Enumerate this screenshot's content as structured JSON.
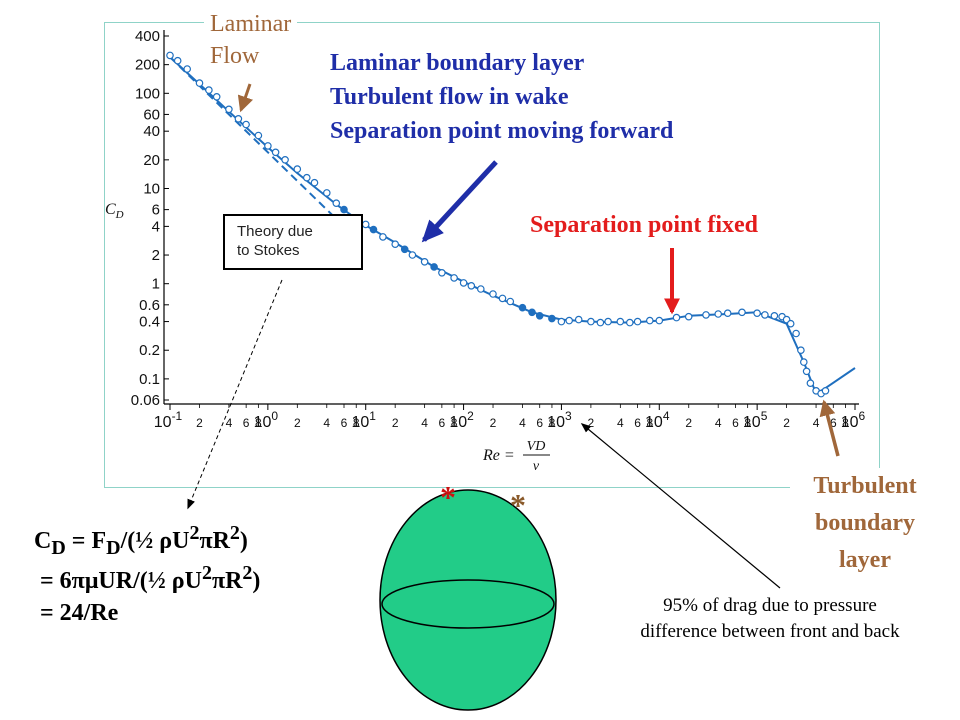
{
  "annotations": {
    "laminar_flow": [
      "Laminar",
      "Flow"
    ],
    "blue_block": [
      "Laminar boundary layer",
      "Turbulent flow in wake",
      "Separation point moving forward"
    ],
    "separation_fixed": "Separation point fixed",
    "turbulent_bl": [
      "Turbulent",
      "boundary",
      "layer"
    ],
    "stokes_box": [
      "Theory due",
      "to Stokes"
    ],
    "drag_note": [
      "95% of drag due to pressure",
      "difference between front and back"
    ]
  },
  "formula": {
    "line1": "C<sub>D</sub> = F<sub>D</sub>/(½ ρU<sup>2</sup>πR<sup>2</sup>)",
    "line2": "= 6πμUR/(½ ρU<sup>2</sup>πR<sup>2</sup>)",
    "line3": "= 24/Re"
  },
  "sphere": {
    "fill": "#22cc88",
    "asterisk": "*",
    "asterisk_left_color": "#cc1111",
    "asterisk_right_color": "#8a5a2a"
  },
  "colors": {
    "curve": "#1f6fbf",
    "annotation_blue": "#1f2ea8",
    "annotation_red": "#e31c1c",
    "annotation_brown": "#a0673a"
  },
  "chart_data": {
    "type": "scatter",
    "title": "",
    "xlabel": "Re = VD/ν",
    "ylabel": "C_D",
    "xscale": "log",
    "yscale": "log",
    "xlim": [
      0.1,
      1000000
    ],
    "ylim": [
      0.06,
      400
    ],
    "x_ticks_major": [
      "10^-1",
      "10^0",
      "10^1",
      "10^2",
      "10^3",
      "10^4",
      "10^5",
      "10^6"
    ],
    "x_ticks_minor": [
      "2",
      "4",
      "6",
      "8"
    ],
    "y_ticks": [
      400,
      200,
      100,
      60,
      40,
      20,
      10,
      6,
      4,
      2,
      1,
      0.6,
      0.4,
      0.2,
      0.1,
      0.06
    ],
    "series": [
      {
        "name": "",
        "style": "smooth curve",
        "x": [
          0.1,
          0.2,
          0.5,
          1,
          2,
          5,
          10,
          20,
          50,
          100,
          200,
          500,
          1000,
          2000,
          5000,
          10000,
          20000,
          50000,
          100000,
          200000,
          300000,
          400000,
          500000,
          1000000
        ],
        "y": [
          240,
          125,
          52,
          27,
          14.5,
          6.8,
          4.1,
          2.7,
          1.5,
          1.05,
          0.75,
          0.5,
          0.42,
          0.4,
          0.39,
          0.41,
          0.46,
          0.48,
          0.5,
          0.38,
          0.15,
          0.07,
          0.08,
          0.13
        ]
      },
      {
        "name": "",
        "style": "dashed line",
        "x": [
          0.1,
          10
        ],
        "y": [
          240,
          2.4
        ]
      }
    ],
    "data_points": {
      "x": [
        0.1,
        0.12,
        0.15,
        0.2,
        0.25,
        0.3,
        0.4,
        0.5,
        0.6,
        0.8,
        1,
        1.2,
        1.5,
        2,
        2.5,
        3,
        4,
        5,
        6,
        8,
        10,
        12,
        15,
        20,
        25,
        30,
        40,
        50,
        60,
        80,
        100,
        120,
        150,
        200,
        250,
        300,
        400,
        500,
        600,
        800,
        1000,
        1200,
        1500,
        2000,
        2500,
        3000,
        4000,
        5000,
        6000,
        8000,
        10000,
        15000,
        20000,
        30000,
        40000,
        50000,
        70000,
        100000,
        120000,
        150000,
        180000,
        200000,
        220000,
        250000,
        280000,
        300000,
        320000,
        350000,
        400000,
        450000,
        500000
      ],
      "y": [
        250,
        220,
        180,
        128,
        108,
        92,
        68,
        54,
        47,
        36,
        28,
        24,
        20,
        16,
        13,
        11.5,
        9,
        7,
        6,
        4.8,
        4.2,
        3.7,
        3.1,
        2.6,
        2.3,
        2.0,
        1.7,
        1.5,
        1.3,
        1.15,
        1.02,
        0.95,
        0.88,
        0.78,
        0.7,
        0.65,
        0.56,
        0.5,
        0.46,
        0.43,
        0.4,
        0.41,
        0.42,
        0.4,
        0.39,
        0.4,
        0.4,
        0.39,
        0.4,
        0.41,
        0.41,
        0.44,
        0.45,
        0.47,
        0.48,
        0.49,
        0.5,
        0.49,
        0.47,
        0.46,
        0.45,
        0.42,
        0.38,
        0.3,
        0.2,
        0.15,
        0.12,
        0.09,
        0.075,
        0.07,
        0.075
      ]
    },
    "grid": false,
    "legend": "none"
  }
}
